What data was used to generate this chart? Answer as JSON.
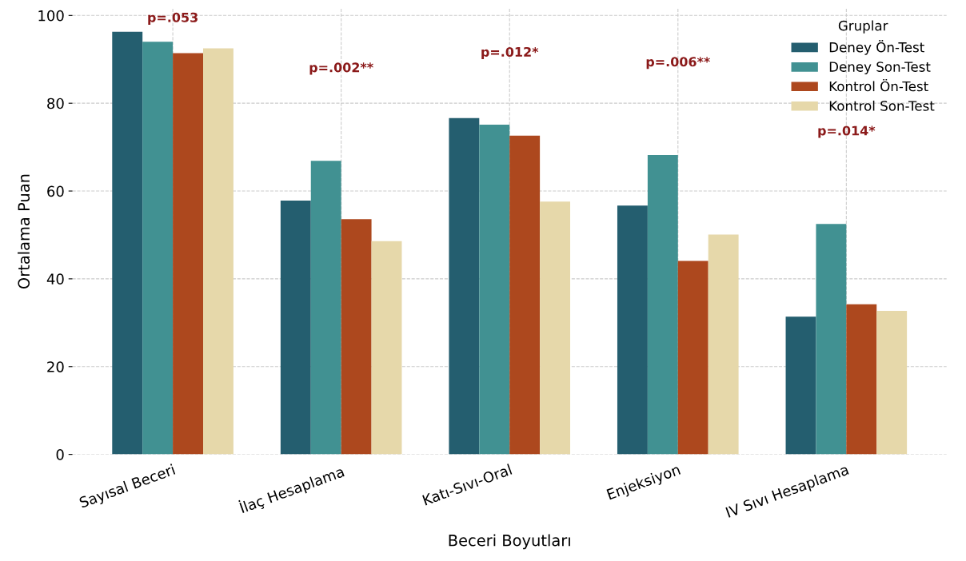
{
  "chart_data": {
    "type": "bar",
    "xlabel": "Beceri Boyutları",
    "ylabel": "Ortalama Puan",
    "legend_title": "Gruplar",
    "categories": [
      "Sayısal Beceri",
      "İlaç Hesaplama",
      "Katı-Sıvı-Oral",
      "Enjeksiyon",
      "IV Sıvı Hesaplama"
    ],
    "series": [
      {
        "name": "Deney Ön-Test",
        "color": "#245e6f",
        "values": [
          96.3,
          57.8,
          76.6,
          56.7,
          31.4
        ]
      },
      {
        "name": "Deney Son-Test",
        "color": "#419192",
        "values": [
          94.0,
          66.9,
          75.1,
          68.2,
          52.5
        ]
      },
      {
        "name": "Kontrol Ön-Test",
        "color": "#ad481e",
        "values": [
          91.4,
          53.6,
          72.6,
          44.1,
          34.2
        ]
      },
      {
        "name": "Kontrol Son-Test",
        "color": "#e6d8aa",
        "values": [
          92.5,
          48.6,
          57.6,
          50.1,
          32.7
        ]
      }
    ],
    "annotations": [
      "p=.053",
      "p=.002**",
      "p=.012*",
      "p=.006**",
      "p=.014*"
    ],
    "ylim": [
      0,
      101.6
    ],
    "yticks": [
      0,
      20,
      40,
      60,
      80,
      100
    ],
    "grid": true,
    "legend": "top right"
  }
}
